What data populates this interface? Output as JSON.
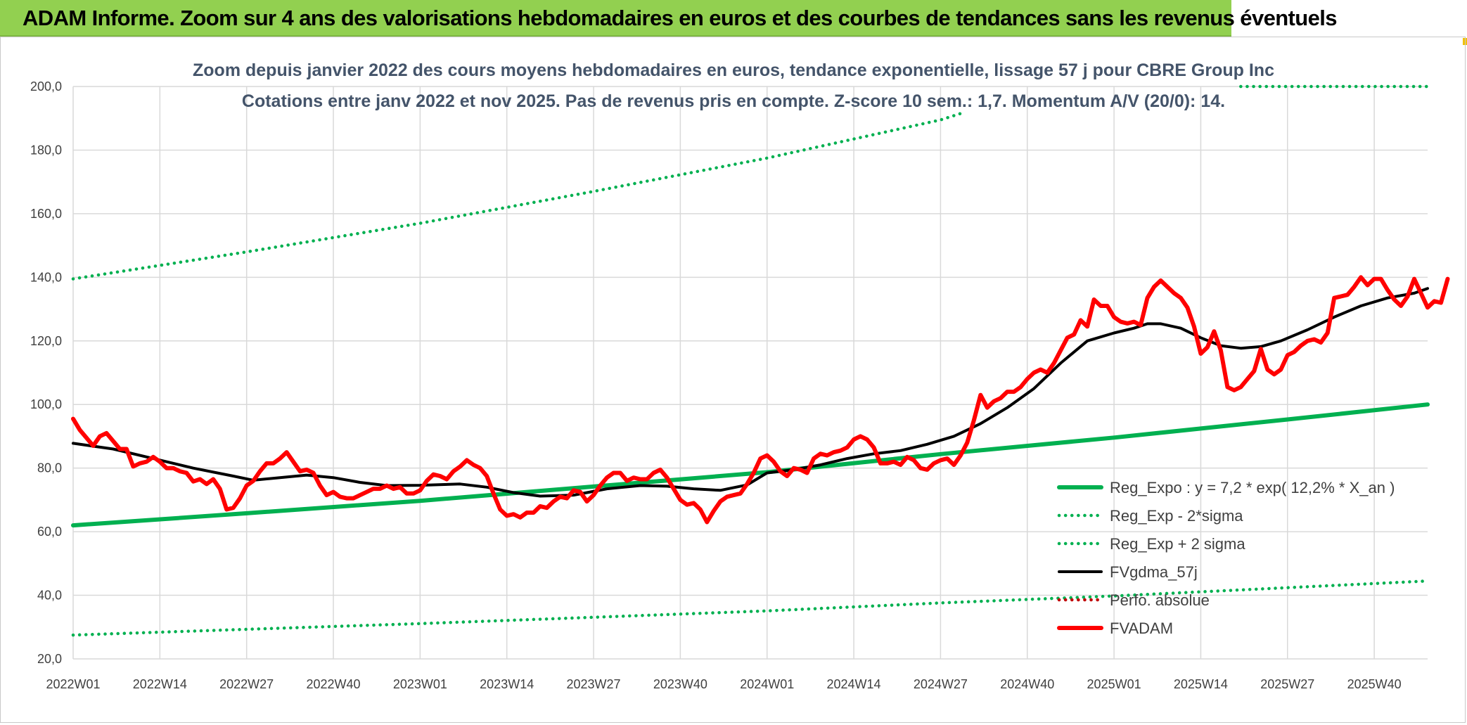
{
  "header": {
    "banner_title": "ADAM Informe. Zoom sur 4 ans des valorisations hebdomadaires en euros et des courbes de tendances sans les revenus éventuels"
  },
  "colors": {
    "banner": "#92d050",
    "reg_expo": "#00b050",
    "fvadam": "#ff0000",
    "fvgdma": "#000000",
    "grid": "#d9d9d9"
  },
  "chart_data": {
    "type": "line",
    "title_line1": "Zoom depuis janvier 2022 des cours moyens hebdomadaires en euros, tendance exponentielle, lissage 57 j pour CBRE Group Inc",
    "title_line2": "Cotations entre janv 2022 et nov 2025. Pas de revenus pris en compte. Z-score 10 sem.: 1,7. Momentum A/V (20/0): 14.",
    "ylim": [
      20,
      200
    ],
    "y_ticks": [
      "20,0",
      "40,0",
      "60,0",
      "80,0",
      "100,0",
      "120,0",
      "140,0",
      "160,0",
      "180,0",
      "200,0"
    ],
    "x_range_weeks": [
      0,
      203
    ],
    "x_ticks": [
      {
        "label": "2022W01",
        "week": 0
      },
      {
        "label": "2022W14",
        "week": 13
      },
      {
        "label": "2022W27",
        "week": 26
      },
      {
        "label": "2022W40",
        "week": 39
      },
      {
        "label": "2023W01",
        "week": 52
      },
      {
        "label": "2023W14",
        "week": 65
      },
      {
        "label": "2023W27",
        "week": 78
      },
      {
        "label": "2023W40",
        "week": 91
      },
      {
        "label": "2024W01",
        "week": 104
      },
      {
        "label": "2024W14",
        "week": 117
      },
      {
        "label": "2024W27",
        "week": 130
      },
      {
        "label": "2024W40",
        "week": 143
      },
      {
        "label": "2025W01",
        "week": 156
      },
      {
        "label": "2025W14",
        "week": 169
      },
      {
        "label": "2025W27",
        "week": 182
      },
      {
        "label": "2025W40",
        "week": 195
      }
    ],
    "series": [
      {
        "name": "Reg_Expo : y = 7,2 * exp( 12,2% *  X_an )",
        "style": "solid-thick",
        "color": "#00b050",
        "points": [
          [
            0,
            62
          ],
          [
            26,
            65.8
          ],
          [
            52,
            69.7
          ],
          [
            78,
            74.2
          ],
          [
            104,
            78.7
          ],
          [
            130,
            84.4
          ],
          [
            156,
            89.6
          ],
          [
            182,
            95.3
          ],
          [
            203,
            100
          ]
        ]
      },
      {
        "name": "Reg_Exp - 2*sigma",
        "style": "dotted",
        "color": "#00b050",
        "points": [
          [
            0,
            27.5
          ],
          [
            26,
            29.3
          ],
          [
            52,
            31.1
          ],
          [
            78,
            33.1
          ],
          [
            104,
            35.1
          ],
          [
            130,
            37.6
          ],
          [
            156,
            39.8
          ],
          [
            182,
            42.4
          ],
          [
            203,
            44.5
          ]
        ]
      },
      {
        "name": "Reg_Exp + 2 sigma",
        "style": "dotted",
        "color": "#00b050",
        "points": [
          [
            0,
            139.5
          ],
          [
            26,
            148
          ],
          [
            52,
            157
          ],
          [
            78,
            167
          ],
          [
            104,
            177.5
          ],
          [
            130,
            189.5
          ],
          [
            133,
            191.5
          ]
        ],
        "tail_points": [
          [
            175,
            200
          ],
          [
            203,
            200
          ]
        ]
      },
      {
        "name": "FVgdma_57j",
        "style": "solid",
        "color": "#000000",
        "points": [
          [
            0,
            87.8
          ],
          [
            6,
            86
          ],
          [
            12,
            83
          ],
          [
            18,
            80
          ],
          [
            24,
            77.5
          ],
          [
            27,
            76.2
          ],
          [
            31,
            77
          ],
          [
            35,
            77.8
          ],
          [
            39,
            77
          ],
          [
            43,
            75.5
          ],
          [
            47,
            74.5
          ],
          [
            52,
            74.6
          ],
          [
            58,
            75
          ],
          [
            62,
            74
          ],
          [
            66,
            72.3
          ],
          [
            70,
            71.2
          ],
          [
            75,
            71.5
          ],
          [
            80,
            73.5
          ],
          [
            85,
            74.5
          ],
          [
            89,
            74.3
          ],
          [
            93,
            73.5
          ],
          [
            97,
            73
          ],
          [
            101,
            74.7
          ],
          [
            104,
            78.5
          ],
          [
            108,
            79.5
          ],
          [
            112,
            81
          ],
          [
            116,
            83
          ],
          [
            120,
            84.5
          ],
          [
            124,
            85.5
          ],
          [
            128,
            87.5
          ],
          [
            132,
            90
          ],
          [
            136,
            94
          ],
          [
            140,
            99
          ],
          [
            144,
            105
          ],
          [
            148,
            113
          ],
          [
            152,
            120
          ],
          [
            156,
            122.5
          ],
          [
            159,
            124
          ],
          [
            161,
            125.4
          ],
          [
            163,
            125.4
          ],
          [
            166,
            124
          ],
          [
            169,
            121
          ],
          [
            172,
            118.5
          ],
          [
            175,
            117.7
          ],
          [
            178,
            118.2
          ],
          [
            181,
            120
          ],
          [
            185,
            123.5
          ],
          [
            189,
            127.5
          ],
          [
            193,
            131
          ],
          [
            197,
            133.5
          ],
          [
            201,
            135
          ],
          [
            203,
            136.5
          ]
        ]
      },
      {
        "name": "FVADAM",
        "style": "solid-thick",
        "color": "#ff0000",
        "points": [
          [
            0,
            95.5
          ],
          [
            1,
            92
          ],
          [
            2,
            89.5
          ],
          [
            3,
            87
          ],
          [
            4,
            90
          ],
          [
            5,
            91
          ],
          [
            6,
            88.5
          ],
          [
            7,
            86
          ],
          [
            8,
            86
          ],
          [
            9,
            80.5
          ],
          [
            10,
            81.5
          ],
          [
            11,
            82
          ],
          [
            12,
            83.5
          ],
          [
            13,
            82
          ],
          [
            14,
            80
          ],
          [
            15,
            80
          ],
          [
            16,
            79
          ],
          [
            17,
            78.5
          ],
          [
            18,
            75.8
          ],
          [
            19,
            76.5
          ],
          [
            20,
            75
          ],
          [
            21,
            76.5
          ],
          [
            22,
            73.5
          ],
          [
            23,
            67
          ],
          [
            24,
            67.5
          ],
          [
            25,
            70.5
          ],
          [
            26,
            74.5
          ],
          [
            27,
            76
          ],
          [
            28,
            79
          ],
          [
            29,
            81.5
          ],
          [
            30,
            81.5
          ],
          [
            31,
            83
          ],
          [
            32,
            85
          ],
          [
            33,
            82
          ],
          [
            34,
            79
          ],
          [
            35,
            79.5
          ],
          [
            36,
            78.5
          ],
          [
            37,
            74.5
          ],
          [
            38,
            71.5
          ],
          [
            39,
            72.5
          ],
          [
            40,
            71
          ],
          [
            41,
            70.5
          ],
          [
            42,
            70.5
          ],
          [
            43,
            71.5
          ],
          [
            44,
            72.5
          ],
          [
            45,
            73.5
          ],
          [
            46,
            73.5
          ],
          [
            47,
            74.5
          ],
          [
            48,
            73.5
          ],
          [
            49,
            74
          ],
          [
            50,
            72
          ],
          [
            51,
            72
          ],
          [
            52,
            73
          ],
          [
            53,
            76
          ],
          [
            54,
            78
          ],
          [
            55,
            77.5
          ],
          [
            56,
            76.5
          ],
          [
            57,
            79
          ],
          [
            58,
            80.5
          ],
          [
            59,
            82.5
          ],
          [
            60,
            81
          ],
          [
            61,
            80
          ],
          [
            62,
            77.5
          ],
          [
            63,
            72
          ],
          [
            64,
            67
          ],
          [
            65,
            65
          ],
          [
            66,
            65.5
          ],
          [
            67,
            64.5
          ],
          [
            68,
            66
          ],
          [
            69,
            66
          ],
          [
            70,
            68
          ],
          [
            71,
            67.5
          ],
          [
            72,
            69.5
          ],
          [
            73,
            71
          ],
          [
            74,
            70.5
          ],
          [
            75,
            73
          ],
          [
            76,
            72.5
          ],
          [
            77,
            69.5
          ],
          [
            78,
            71.5
          ],
          [
            79,
            74.5
          ],
          [
            80,
            77
          ],
          [
            81,
            78.5
          ],
          [
            82,
            78.5
          ],
          [
            83,
            76
          ],
          [
            84,
            77
          ],
          [
            85,
            76.5
          ],
          [
            86,
            76.5
          ],
          [
            87,
            78.5
          ],
          [
            88,
            79.5
          ],
          [
            89,
            77
          ],
          [
            90,
            73.5
          ],
          [
            91,
            70
          ],
          [
            92,
            68.5
          ],
          [
            93,
            69
          ],
          [
            94,
            67
          ],
          [
            95,
            63
          ],
          [
            96,
            66.5
          ],
          [
            97,
            69.5
          ],
          [
            98,
            71
          ],
          [
            99,
            71.5
          ],
          [
            100,
            72
          ],
          [
            101,
            75
          ],
          [
            102,
            78.5
          ],
          [
            103,
            83
          ],
          [
            104,
            84
          ],
          [
            105,
            82
          ],
          [
            106,
            79
          ],
          [
            107,
            77.5
          ],
          [
            108,
            80
          ],
          [
            109,
            79.5
          ],
          [
            110,
            78.5
          ],
          [
            111,
            83
          ],
          [
            112,
            84.5
          ],
          [
            113,
            84
          ],
          [
            114,
            85
          ],
          [
            115,
            85.5
          ],
          [
            116,
            86.5
          ],
          [
            117,
            89
          ],
          [
            118,
            90
          ],
          [
            119,
            89
          ],
          [
            120,
            86.5
          ],
          [
            121,
            81.5
          ],
          [
            122,
            81.5
          ],
          [
            123,
            82
          ],
          [
            124,
            81
          ],
          [
            125,
            83.5
          ],
          [
            126,
            82.5
          ],
          [
            127,
            80
          ],
          [
            128,
            79.5
          ],
          [
            129,
            81.5
          ],
          [
            130,
            82.5
          ],
          [
            131,
            83
          ],
          [
            132,
            81
          ],
          [
            133,
            84
          ],
          [
            134,
            88
          ],
          [
            135,
            95
          ],
          [
            136,
            103
          ],
          [
            137,
            99
          ],
          [
            138,
            101
          ],
          [
            139,
            102
          ],
          [
            140,
            104
          ],
          [
            141,
            104
          ],
          [
            142,
            105.5
          ],
          [
            143,
            108
          ],
          [
            144,
            110
          ],
          [
            145,
            111
          ],
          [
            146,
            110
          ],
          [
            147,
            113
          ],
          [
            148,
            117
          ],
          [
            149,
            121
          ],
          [
            150,
            122
          ],
          [
            151,
            126.5
          ],
          [
            152,
            124.5
          ],
          [
            153,
            133
          ],
          [
            154,
            131
          ],
          [
            155,
            131
          ],
          [
            156,
            127.5
          ],
          [
            157,
            126
          ],
          [
            158,
            125.5
          ],
          [
            159,
            126
          ],
          [
            160,
            125
          ],
          [
            161,
            133.5
          ],
          [
            162,
            137
          ],
          [
            163,
            139
          ],
          [
            164,
            137
          ],
          [
            165,
            135
          ],
          [
            166,
            133.5
          ],
          [
            167,
            130.5
          ],
          [
            168,
            124.5
          ],
          [
            169,
            116
          ],
          [
            170,
            118
          ],
          [
            171,
            123
          ],
          [
            172,
            117
          ],
          [
            173,
            105.5
          ],
          [
            174,
            104.5
          ],
          [
            175,
            105.5
          ],
          [
            176,
            108
          ],
          [
            177,
            110.5
          ],
          [
            178,
            117.5
          ],
          [
            179,
            111
          ],
          [
            180,
            109.5
          ],
          [
            181,
            111
          ],
          [
            182,
            115.5
          ],
          [
            183,
            116.5
          ],
          [
            184,
            118.5
          ],
          [
            185,
            120
          ],
          [
            186,
            120.5
          ],
          [
            187,
            119.5
          ],
          [
            188,
            122.5
          ],
          [
            189,
            133.5
          ],
          [
            190,
            134
          ],
          [
            191,
            134.5
          ],
          [
            192,
            137
          ],
          [
            193,
            140
          ],
          [
            194,
            137.5
          ],
          [
            195,
            139.5
          ],
          [
            196,
            139.5
          ],
          [
            197,
            136
          ],
          [
            198,
            133
          ],
          [
            199,
            131
          ],
          [
            200,
            134
          ],
          [
            201,
            139.5
          ],
          [
            202,
            135
          ],
          [
            203,
            130.5
          ],
          [
            204,
            132.5
          ],
          [
            205,
            132
          ],
          [
            206,
            139.5
          ]
        ]
      }
    ],
    "legend": [
      {
        "label": "Reg_Expo : y = 7,2 * exp( 12,2% *  X_an )",
        "style": "solid-thick",
        "color": "#00b050"
      },
      {
        "label": "Reg_Exp - 2*sigma",
        "style": "dotted",
        "color": "#00b050"
      },
      {
        "label": "Reg_Exp + 2 sigma",
        "style": "dotted",
        "color": "#00b050"
      },
      {
        "label": "FVgdma_57j",
        "style": "solid",
        "color": "#000000"
      },
      {
        "label": "Perfo. absolue",
        "style": "dotted",
        "color": "#c00000"
      },
      {
        "label": "FVADAM",
        "style": "solid-thick",
        "color": "#ff0000"
      }
    ]
  }
}
